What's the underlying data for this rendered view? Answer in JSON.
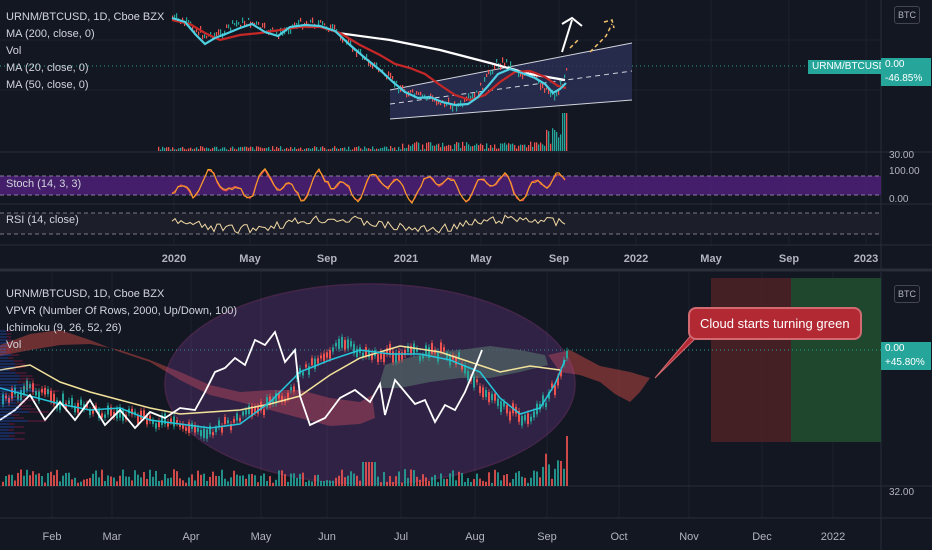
{
  "top_panel": {
    "legend": [
      "URNM/BTCUSD, 1D, Cboe BZX",
      "MA (200, close, 0)",
      "Vol",
      "MA (20, close, 0)",
      "MA (50, close, 0)"
    ],
    "currency_button": "BTC",
    "symbol_tag": "URNM/BTCUSD",
    "price_tag": "0.00",
    "pct_tag": "-46.85%",
    "vol_axis_label": "30.00",
    "stoch_label": "Stoch (14, 3, 3)",
    "stoch_axis": [
      "100.00",
      "0.00"
    ],
    "rsi_label": "RSI (14, close)",
    "x_ticks": [
      "2020",
      "May",
      "Sep",
      "2021",
      "May",
      "Sep",
      "2022",
      "May",
      "Sep",
      "2023"
    ]
  },
  "bottom_panel": {
    "legend": [
      "URNM/BTCUSD, 1D, Cboe BZX",
      "VPVR (Number Of Rows, 2000, Up/Down, 100)",
      "Ichimoku (9, 26, 52, 26)",
      "Vol"
    ],
    "currency_button": "BTC",
    "price_tag": "0.00",
    "pct_tag": "+45.80%",
    "vol_axis_label": "32.00",
    "callout": "Cloud starts turning green",
    "x_ticks": [
      "Feb",
      "Mar",
      "Apr",
      "May",
      "Jun",
      "Jul",
      "Aug",
      "Sep",
      "Oct",
      "Nov",
      "Dec",
      "2022"
    ]
  },
  "colors": {
    "background": "#131722",
    "ma20": "#4dd0e1",
    "ma50": "#c62828",
    "ma200": "#ffffff",
    "channel_fill": "#2a2e52",
    "stoch_band": "#4a1f73",
    "cloud_red": "#8b3a3a",
    "cloud_green": "#3e6b4d",
    "tag_teal": "#26a69a",
    "callout_red": "#b22833"
  },
  "chart_data": [
    {
      "type": "line",
      "title": "URNM/BTCUSD, 1D, Cboe BZX",
      "indicators": [
        "MA (200, close, 0)",
        "Vol",
        "MA (20, close, 0)",
        "MA (50, close, 0)",
        "Stoch (14, 3, 3)",
        "RSI (14, close)"
      ],
      "x_ticks": [
        "2020",
        "May",
        "Sep",
        "2021",
        "May",
        "Sep",
        "2022",
        "May",
        "Sep",
        "2023"
      ],
      "last_value": 0.0,
      "change_pct": -46.85
    },
    {
      "type": "line",
      "title": "URNM/BTCUSD, 1D, Cboe BZX",
      "indicators": [
        "VPVR (Number Of Rows, 2000, Up/Down, 100)",
        "Ichimoku (9, 26, 52, 26)",
        "Vol"
      ],
      "x_ticks": [
        "Feb",
        "Mar",
        "Apr",
        "May",
        "Jun",
        "Jul",
        "Aug",
        "Sep",
        "Oct",
        "Nov",
        "Dec",
        "2022"
      ],
      "last_value": 0.0,
      "change_pct": 45.8,
      "annotation": "Cloud starts turning green"
    }
  ]
}
